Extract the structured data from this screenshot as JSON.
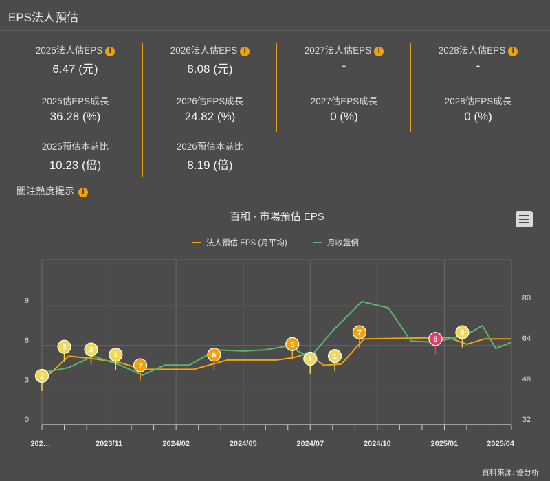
{
  "header": {
    "title": "EPS法人預估"
  },
  "stats": [
    {
      "items": [
        {
          "label": "2025法人估EPS",
          "value": "6.47 (元)",
          "info": true
        },
        {
          "label": "2025估EPS成長",
          "value": "36.28 (%)"
        },
        {
          "label": "2025預估本益比",
          "value": "10.23 (倍)"
        }
      ]
    },
    {
      "items": [
        {
          "label": "2026法人估EPS",
          "value": "8.08 (元)",
          "info": true
        },
        {
          "label": "2026估EPS成長",
          "value": "24.82 (%)"
        },
        {
          "label": "2026預估本益比",
          "value": "8.19 (倍)"
        }
      ]
    },
    {
      "items": [
        {
          "label": "2027法人估EPS",
          "value": "-",
          "info": true
        },
        {
          "label": "2027估EPS成長",
          "value": "0 (%)"
        }
      ]
    },
    {
      "items": [
        {
          "label": "2028法人估EPS",
          "value": "-",
          "info": true
        },
        {
          "label": "2028估EPS成長",
          "value": "0 (%)"
        }
      ]
    }
  ],
  "hint": {
    "label": "關注熱度提示"
  },
  "icons": {
    "info": "i",
    "menu": "hamburger-menu-icon"
  },
  "colors": {
    "eps": "#f0a30a",
    "price": "#59b86a",
    "bubble_yellow": "#f0d85a",
    "bubble_orange": "#f5a10a",
    "bubble_pink": "#e73b6e"
  },
  "chart_data": {
    "type": "line",
    "title": "百和 - 市場預估 EPS",
    "source": "資料來源: 優分析",
    "x_tick_labels": [
      "202…",
      "2023/11",
      "2024/02",
      "2024/05",
      "2024/07",
      "2024/10",
      "2025/01",
      "2025/04"
    ],
    "x_tick_months": [
      0,
      3,
      6,
      9,
      12,
      15,
      18,
      21
    ],
    "y_left": {
      "ticks": [
        0,
        3,
        6,
        9
      ],
      "range": [
        0,
        12.5
      ]
    },
    "y_right": {
      "ticks": [
        32,
        48,
        64,
        80
      ],
      "range": [
        32,
        97
      ]
    },
    "series": [
      {
        "name": "法人預估 EPS (月平均)",
        "axis": "left",
        "color": "#f0a30a",
        "points": [
          [
            0,
            3.3
          ],
          [
            1.2,
            5.2
          ],
          [
            2.3,
            5.0
          ],
          [
            3.5,
            4.7
          ],
          [
            4.5,
            4.2
          ],
          [
            6.8,
            4.2
          ],
          [
            8.3,
            4.9
          ],
          [
            10.5,
            4.9
          ],
          [
            11.3,
            5.1
          ],
          [
            11.9,
            5.4
          ],
          [
            12.6,
            4.5
          ],
          [
            13.4,
            4.6
          ],
          [
            14.4,
            6.5
          ],
          [
            18.2,
            6.6
          ],
          [
            19.0,
            6.1
          ],
          [
            19.8,
            6.5
          ],
          [
            20.7,
            6.5
          ],
          [
            21.0,
            6.5
          ]
        ]
      },
      {
        "name": "月收盤價",
        "axis": "right",
        "color": "#59b86a",
        "points": [
          [
            0,
            52.5
          ],
          [
            1.2,
            54.5
          ],
          [
            2.3,
            59.0
          ],
          [
            3.5,
            55.5
          ],
          [
            4.5,
            51.5
          ],
          [
            5.5,
            55.5
          ],
          [
            6.6,
            55.5
          ],
          [
            7.8,
            61.5
          ],
          [
            9.0,
            61.0
          ],
          [
            10.0,
            61.5
          ],
          [
            11.0,
            63.0
          ],
          [
            12.0,
            58.5
          ],
          [
            13.0,
            69.0
          ],
          [
            14.3,
            80.5
          ],
          [
            15.5,
            78.0
          ],
          [
            16.5,
            65.0
          ],
          [
            17.5,
            64.5
          ],
          [
            18.9,
            67.0
          ],
          [
            19.7,
            71.0
          ],
          [
            20.3,
            62.0
          ],
          [
            21.0,
            64.5
          ]
        ]
      }
    ],
    "markers": [
      {
        "label": "2",
        "x": 0.0,
        "y": 3.7,
        "color": "yellow"
      },
      {
        "label": "3",
        "x": 1.0,
        "y": 5.9,
        "color": "yellow"
      },
      {
        "label": "3",
        "x": 2.2,
        "y": 5.7,
        "color": "yellow"
      },
      {
        "label": "1",
        "x": 3.3,
        "y": 5.3,
        "color": "yellow"
      },
      {
        "label": "7",
        "x": 4.4,
        "y": 4.5,
        "color": "orange"
      },
      {
        "label": "6",
        "x": 7.7,
        "y": 5.3,
        "color": "orange"
      },
      {
        "label": "5",
        "x": 11.2,
        "y": 6.1,
        "color": "orange"
      },
      {
        "label": "1",
        "x": 12.0,
        "y": 5.0,
        "color": "yellow"
      },
      {
        "label": "1",
        "x": 13.1,
        "y": 5.2,
        "color": "yellow"
      },
      {
        "label": "7",
        "x": 14.2,
        "y": 7.0,
        "color": "orange"
      },
      {
        "label": "8",
        "x": 17.6,
        "y": 6.5,
        "color": "pink"
      },
      {
        "label": "5",
        "x": 18.8,
        "y": 7.0,
        "color": "yellow"
      }
    ]
  }
}
